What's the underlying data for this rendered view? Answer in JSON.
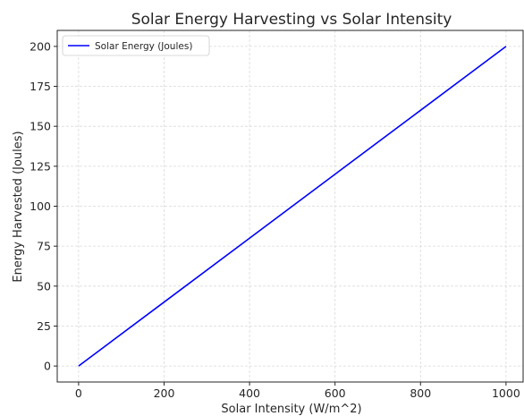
{
  "chart_data": {
    "type": "line",
    "title": "Solar Energy Harvesting vs Solar Intensity",
    "xlabel": "Solar Intensity (W/m^2)",
    "ylabel": "Energy Harvested (Joules)",
    "xlim": [
      -50,
      1040
    ],
    "ylim": [
      -10,
      210
    ],
    "xticks": [
      0,
      200,
      400,
      600,
      800,
      1000
    ],
    "yticks": [
      0,
      25,
      50,
      75,
      100,
      125,
      150,
      175,
      200
    ],
    "grid": true,
    "legend_position": "top-left",
    "series": [
      {
        "name": "Solar Energy (Joules)",
        "color": "#0000ff",
        "x": [
          0,
          200,
          400,
          600,
          800,
          1000
        ],
        "y": [
          0,
          40,
          80,
          120,
          160,
          200
        ]
      }
    ]
  }
}
